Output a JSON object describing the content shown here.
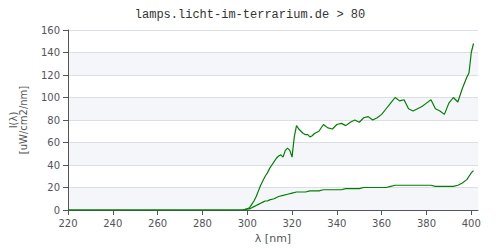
{
  "chart_data": {
    "type": "line",
    "title": "lamps.licht-im-terrarium.de > 80",
    "xlabel": "λ [nm]",
    "ylabel": [
      "I(λ)",
      "[uW/cm2/nm]"
    ],
    "xlim": [
      220,
      403
    ],
    "ylim": [
      0,
      160
    ],
    "xticks": [
      220,
      240,
      260,
      280,
      300,
      320,
      340,
      360,
      380,
      400
    ],
    "yticks": [
      0,
      20,
      40,
      60,
      80,
      100,
      120,
      140,
      160
    ],
    "grid": true,
    "series": [
      {
        "color": "#008000",
        "x": [
          220,
          280,
          290,
          295,
          298,
          300,
          301,
          302,
          303,
          304,
          305,
          306,
          307,
          308,
          309,
          310,
          311,
          312,
          313,
          314,
          315,
          316,
          317,
          318,
          319,
          320,
          321,
          322,
          323,
          324,
          325,
          326,
          327,
          328,
          329,
          330,
          332,
          334,
          336,
          338,
          340,
          342,
          344,
          346,
          348,
          350,
          352,
          354,
          356,
          358,
          360,
          362,
          364,
          366,
          368,
          370,
          372,
          374,
          376,
          378,
          380,
          382,
          384,
          386,
          388,
          390,
          392,
          394,
          396,
          398,
          399,
          400,
          401
        ],
        "values": [
          0,
          0,
          0,
          0,
          0,
          1,
          2,
          5,
          8,
          12,
          17,
          22,
          26,
          30,
          33,
          37,
          40,
          43,
          46,
          48,
          49,
          47,
          53,
          55,
          53,
          47,
          65,
          75,
          72,
          70,
          68,
          67,
          67,
          65,
          66,
          68,
          70,
          76,
          73,
          72,
          76,
          77,
          75,
          78,
          80,
          78,
          82,
          83,
          80,
          82,
          85,
          90,
          95,
          100,
          97,
          98,
          90,
          88,
          90,
          92,
          95,
          98,
          90,
          88,
          85,
          95,
          100,
          96,
          108,
          118,
          122,
          140,
          148
        ]
      },
      {
        "color": "#008000",
        "x": [
          220,
          280,
          290,
          295,
          298,
          300,
          301,
          302,
          303,
          304,
          305,
          306,
          307,
          308,
          309,
          310,
          312,
          314,
          316,
          318,
          320,
          322,
          324,
          326,
          328,
          330,
          332,
          334,
          336,
          338,
          340,
          342,
          344,
          346,
          348,
          350,
          352,
          354,
          356,
          358,
          360,
          362,
          364,
          366,
          368,
          370,
          372,
          374,
          376,
          378,
          380,
          382,
          384,
          386,
          388,
          390,
          392,
          394,
          396,
          398,
          399,
          400,
          401
        ],
        "values": [
          0,
          0,
          0,
          0,
          0,
          1,
          1,
          2,
          3,
          4,
          5,
          6,
          7,
          8,
          8,
          9,
          10,
          12,
          13,
          14,
          15,
          16,
          16,
          16,
          17,
          17,
          17,
          18,
          18,
          18,
          18,
          18,
          19,
          19,
          19,
          19,
          20,
          20,
          20,
          20,
          20,
          20,
          21,
          22,
          22,
          22,
          22,
          22,
          22,
          22,
          22,
          22,
          21,
          21,
          21,
          21,
          21,
          22,
          24,
          27,
          30,
          33,
          35
        ]
      }
    ]
  }
}
